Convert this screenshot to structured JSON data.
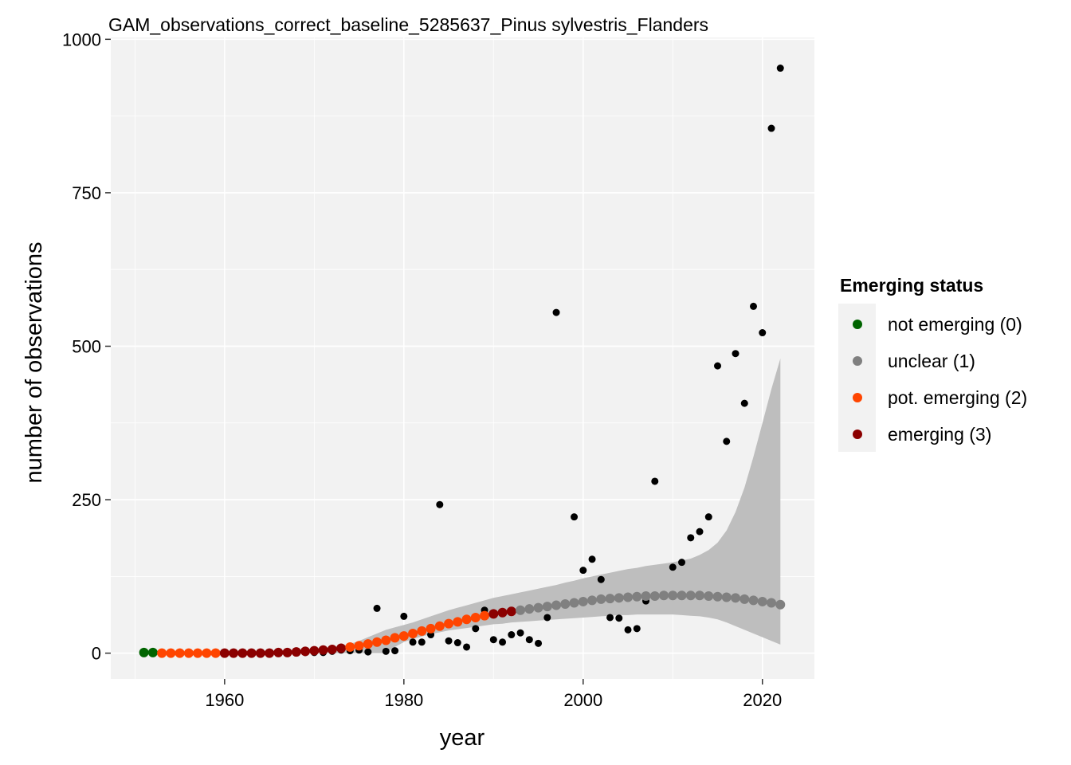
{
  "chart_data": {
    "type": "scatter",
    "title": "GAM_observations_correct_baseline_5285637_Pinus sylvestris_Flanders",
    "xlabel": "year",
    "ylabel": "number of observations",
    "xlim": [
      1947.3,
      2025.8
    ],
    "ylim": [
      -42,
      1003
    ],
    "x_ticks": [
      1960,
      1980,
      2000,
      2020
    ],
    "x_tick_labels": [
      "1960",
      "1980",
      "2000",
      "2020"
    ],
    "y_ticks": [
      0,
      250,
      500,
      750,
      1000
    ],
    "y_tick_labels": [
      "0",
      "250",
      "500",
      "750",
      "1000"
    ],
    "grid": true,
    "legend": {
      "title": "Emerging status",
      "position": "right",
      "entries": [
        {
          "label": "not emerging (0)",
          "color": "#006400"
        },
        {
          "label": "unclear (1)",
          "color": "#808080"
        },
        {
          "label": "pot. emerging (2)",
          "color": "#ff4500"
        },
        {
          "label": "emerging (3)",
          "color": "#8b0000"
        }
      ]
    },
    "status_colors": {
      "0": "#006400",
      "1": "#808080",
      "2": "#ff4500",
      "3": "#8b0000"
    },
    "observations": {
      "color": "#000000",
      "x": [
        1951,
        1952,
        1953,
        1954,
        1955,
        1956,
        1957,
        1958,
        1959,
        1960,
        1961,
        1962,
        1963,
        1964,
        1965,
        1966,
        1967,
        1968,
        1969,
        1970,
        1971,
        1972,
        1973,
        1974,
        1975,
        1976,
        1977,
        1978,
        1979,
        1980,
        1981,
        1982,
        1983,
        1984,
        1985,
        1986,
        1987,
        1988,
        1989,
        1990,
        1991,
        1992,
        1993,
        1994,
        1995,
        1996,
        1997,
        1998,
        1999,
        2000,
        2001,
        2002,
        2003,
        2004,
        2005,
        2006,
        2007,
        2008,
        2009,
        2010,
        2011,
        2012,
        2013,
        2014,
        2015,
        2016,
        2017,
        2018,
        2019,
        2020,
        2021,
        2022
      ],
      "y": [
        2,
        1,
        0,
        0,
        0,
        0,
        0,
        0,
        0,
        0,
        0,
        0,
        0,
        0,
        0,
        0,
        0,
        1,
        1,
        1,
        1,
        3,
        5,
        4,
        5,
        2,
        73,
        3,
        4,
        60,
        18,
        18,
        30,
        242,
        20,
        17,
        10,
        40,
        70,
        22,
        18,
        30,
        33,
        22,
        16,
        58,
        555,
        80,
        222,
        135,
        153,
        120,
        58,
        57,
        38,
        40,
        85,
        280,
        95,
        140,
        148,
        188,
        198,
        222,
        468,
        345,
        488,
        407,
        565,
        522,
        855,
        953
      ]
    },
    "gam_fit": {
      "x": [
        1951,
        1952,
        1953,
        1954,
        1955,
        1956,
        1957,
        1958,
        1959,
        1960,
        1961,
        1962,
        1963,
        1964,
        1965,
        1966,
        1967,
        1968,
        1969,
        1970,
        1971,
        1972,
        1973,
        1974,
        1975,
        1976,
        1977,
        1978,
        1979,
        1980,
        1981,
        1982,
        1983,
        1984,
        1985,
        1986,
        1987,
        1988,
        1989,
        1990,
        1991,
        1992,
        1993,
        1994,
        1995,
        1996,
        1997,
        1998,
        1999,
        2000,
        2001,
        2002,
        2003,
        2004,
        2005,
        2006,
        2007,
        2008,
        2009,
        2010,
        2011,
        2012,
        2013,
        2014,
        2015,
        2016,
        2017,
        2018,
        2019,
        2020,
        2021,
        2022
      ],
      "y": [
        1,
        1,
        0,
        0,
        0,
        0,
        0,
        0,
        0,
        0,
        0,
        0,
        0,
        0,
        0,
        1,
        1,
        2,
        3,
        4,
        5,
        6,
        8,
        10,
        12,
        15,
        18,
        21,
        25,
        28,
        32,
        36,
        40,
        44,
        48,
        51,
        55,
        58,
        61,
        64,
        66,
        68,
        70,
        72,
        74,
        76,
        78,
        80,
        82,
        84,
        86,
        88,
        89,
        90,
        91,
        92,
        93,
        93,
        94,
        94,
        94,
        94,
        94,
        93,
        92,
        91,
        90,
        88,
        86,
        84,
        82,
        79
      ],
      "status": [
        0,
        0,
        2,
        2,
        2,
        2,
        2,
        2,
        2,
        3,
        3,
        3,
        3,
        3,
        3,
        3,
        3,
        3,
        3,
        3,
        3,
        3,
        3,
        2,
        2,
        2,
        2,
        2,
        2,
        2,
        2,
        2,
        2,
        2,
        2,
        2,
        2,
        2,
        2,
        3,
        3,
        3,
        1,
        1,
        1,
        1,
        1,
        1,
        1,
        1,
        1,
        1,
        1,
        1,
        1,
        1,
        1,
        1,
        1,
        1,
        1,
        1,
        1,
        1,
        1,
        1,
        1,
        1,
        1,
        1,
        1,
        1
      ],
      "ci_color": "#bebebe",
      "ci_lower": [
        0,
        0,
        0,
        0,
        0,
        0,
        0,
        0,
        0,
        0,
        0,
        0,
        0,
        0,
        0,
        0,
        0,
        0,
        0,
        0,
        0,
        0,
        0,
        0,
        0,
        0,
        0,
        0,
        10,
        18,
        23,
        27,
        31,
        34,
        37,
        39,
        41,
        43,
        45,
        47,
        48,
        50,
        51,
        52,
        53,
        54,
        55,
        56,
        57,
        58,
        59,
        60,
        61,
        62,
        62,
        63,
        63,
        63,
        63,
        63,
        62,
        61,
        60,
        58,
        55,
        50,
        44,
        38,
        32,
        26,
        20,
        14
      ],
      "ci_upper": [
        2,
        2,
        2,
        2,
        2,
        2,
        2,
        2,
        2,
        2,
        2,
        2,
        2,
        2,
        2,
        2,
        3,
        4,
        5,
        6,
        8,
        10,
        12,
        15,
        20,
        26,
        32,
        38,
        42,
        46,
        50,
        55,
        60,
        65,
        70,
        74,
        78,
        82,
        86,
        90,
        93,
        96,
        99,
        102,
        105,
        108,
        111,
        115,
        118,
        122,
        125,
        128,
        131,
        134,
        137,
        139,
        142,
        144,
        146,
        148,
        151,
        154,
        160,
        168,
        180,
        200,
        230,
        270,
        320,
        375,
        430,
        480
      ]
    }
  }
}
